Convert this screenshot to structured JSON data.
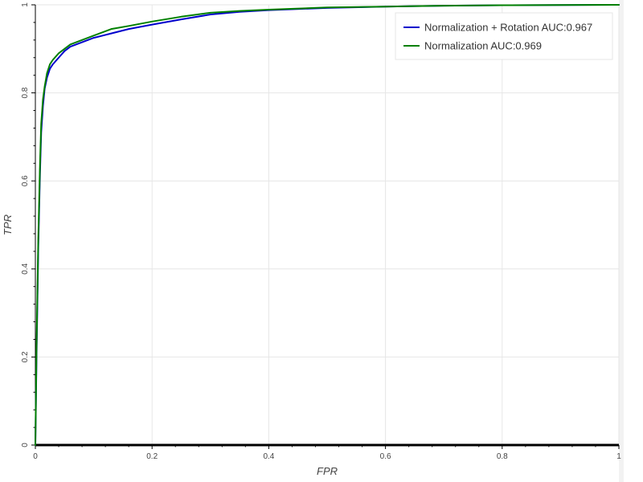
{
  "chart_data": {
    "type": "line",
    "title": "",
    "xlabel": "FPR",
    "ylabel": "TPR",
    "xlim": [
      0,
      1
    ],
    "ylim": [
      0,
      1
    ],
    "grid": true,
    "legend_position": "top-right",
    "x_ticks": [
      0,
      0.2,
      0.4,
      0.6,
      0.8,
      1
    ],
    "y_ticks": [
      0,
      0.2,
      0.4,
      0.6,
      0.8,
      1
    ],
    "x_tick_labels": [
      "0",
      "0.2",
      "0.4",
      "0.6",
      "0.8",
      "1"
    ],
    "y_tick_labels": [
      "0",
      "0.2",
      "0.4",
      "0.6",
      "0.8",
      "1"
    ],
    "series": [
      {
        "name": "Normalization + Rotation AUC:0.967",
        "color": "#0000cc",
        "x": [
          0,
          0.002,
          0.005,
          0.008,
          0.01,
          0.013,
          0.016,
          0.02,
          0.025,
          0.03,
          0.04,
          0.05,
          0.06,
          0.08,
          0.1,
          0.13,
          0.16,
          0.2,
          0.25,
          0.3,
          0.35,
          0.4,
          0.5,
          0.6,
          0.7,
          0.8,
          0.9,
          1
        ],
        "y": [
          0,
          0.2,
          0.45,
          0.62,
          0.71,
          0.77,
          0.81,
          0.835,
          0.855,
          0.865,
          0.88,
          0.895,
          0.905,
          0.915,
          0.925,
          0.935,
          0.945,
          0.955,
          0.967,
          0.978,
          0.984,
          0.988,
          0.993,
          0.996,
          0.998,
          0.999,
          0.9995,
          1
        ]
      },
      {
        "name": "Normalization AUC:0.969",
        "color": "#008000",
        "x": [
          0,
          0.002,
          0.005,
          0.008,
          0.01,
          0.013,
          0.016,
          0.02,
          0.025,
          0.03,
          0.04,
          0.05,
          0.06,
          0.08,
          0.1,
          0.13,
          0.16,
          0.2,
          0.25,
          0.3,
          0.35,
          0.4,
          0.5,
          0.6,
          0.7,
          0.8,
          0.9,
          1
        ],
        "y": [
          0,
          0.22,
          0.47,
          0.64,
          0.73,
          0.785,
          0.815,
          0.845,
          0.865,
          0.875,
          0.89,
          0.9,
          0.91,
          0.92,
          0.93,
          0.945,
          0.952,
          0.962,
          0.973,
          0.982,
          0.986,
          0.989,
          0.994,
          0.996,
          0.998,
          0.999,
          0.9995,
          1
        ]
      }
    ]
  }
}
